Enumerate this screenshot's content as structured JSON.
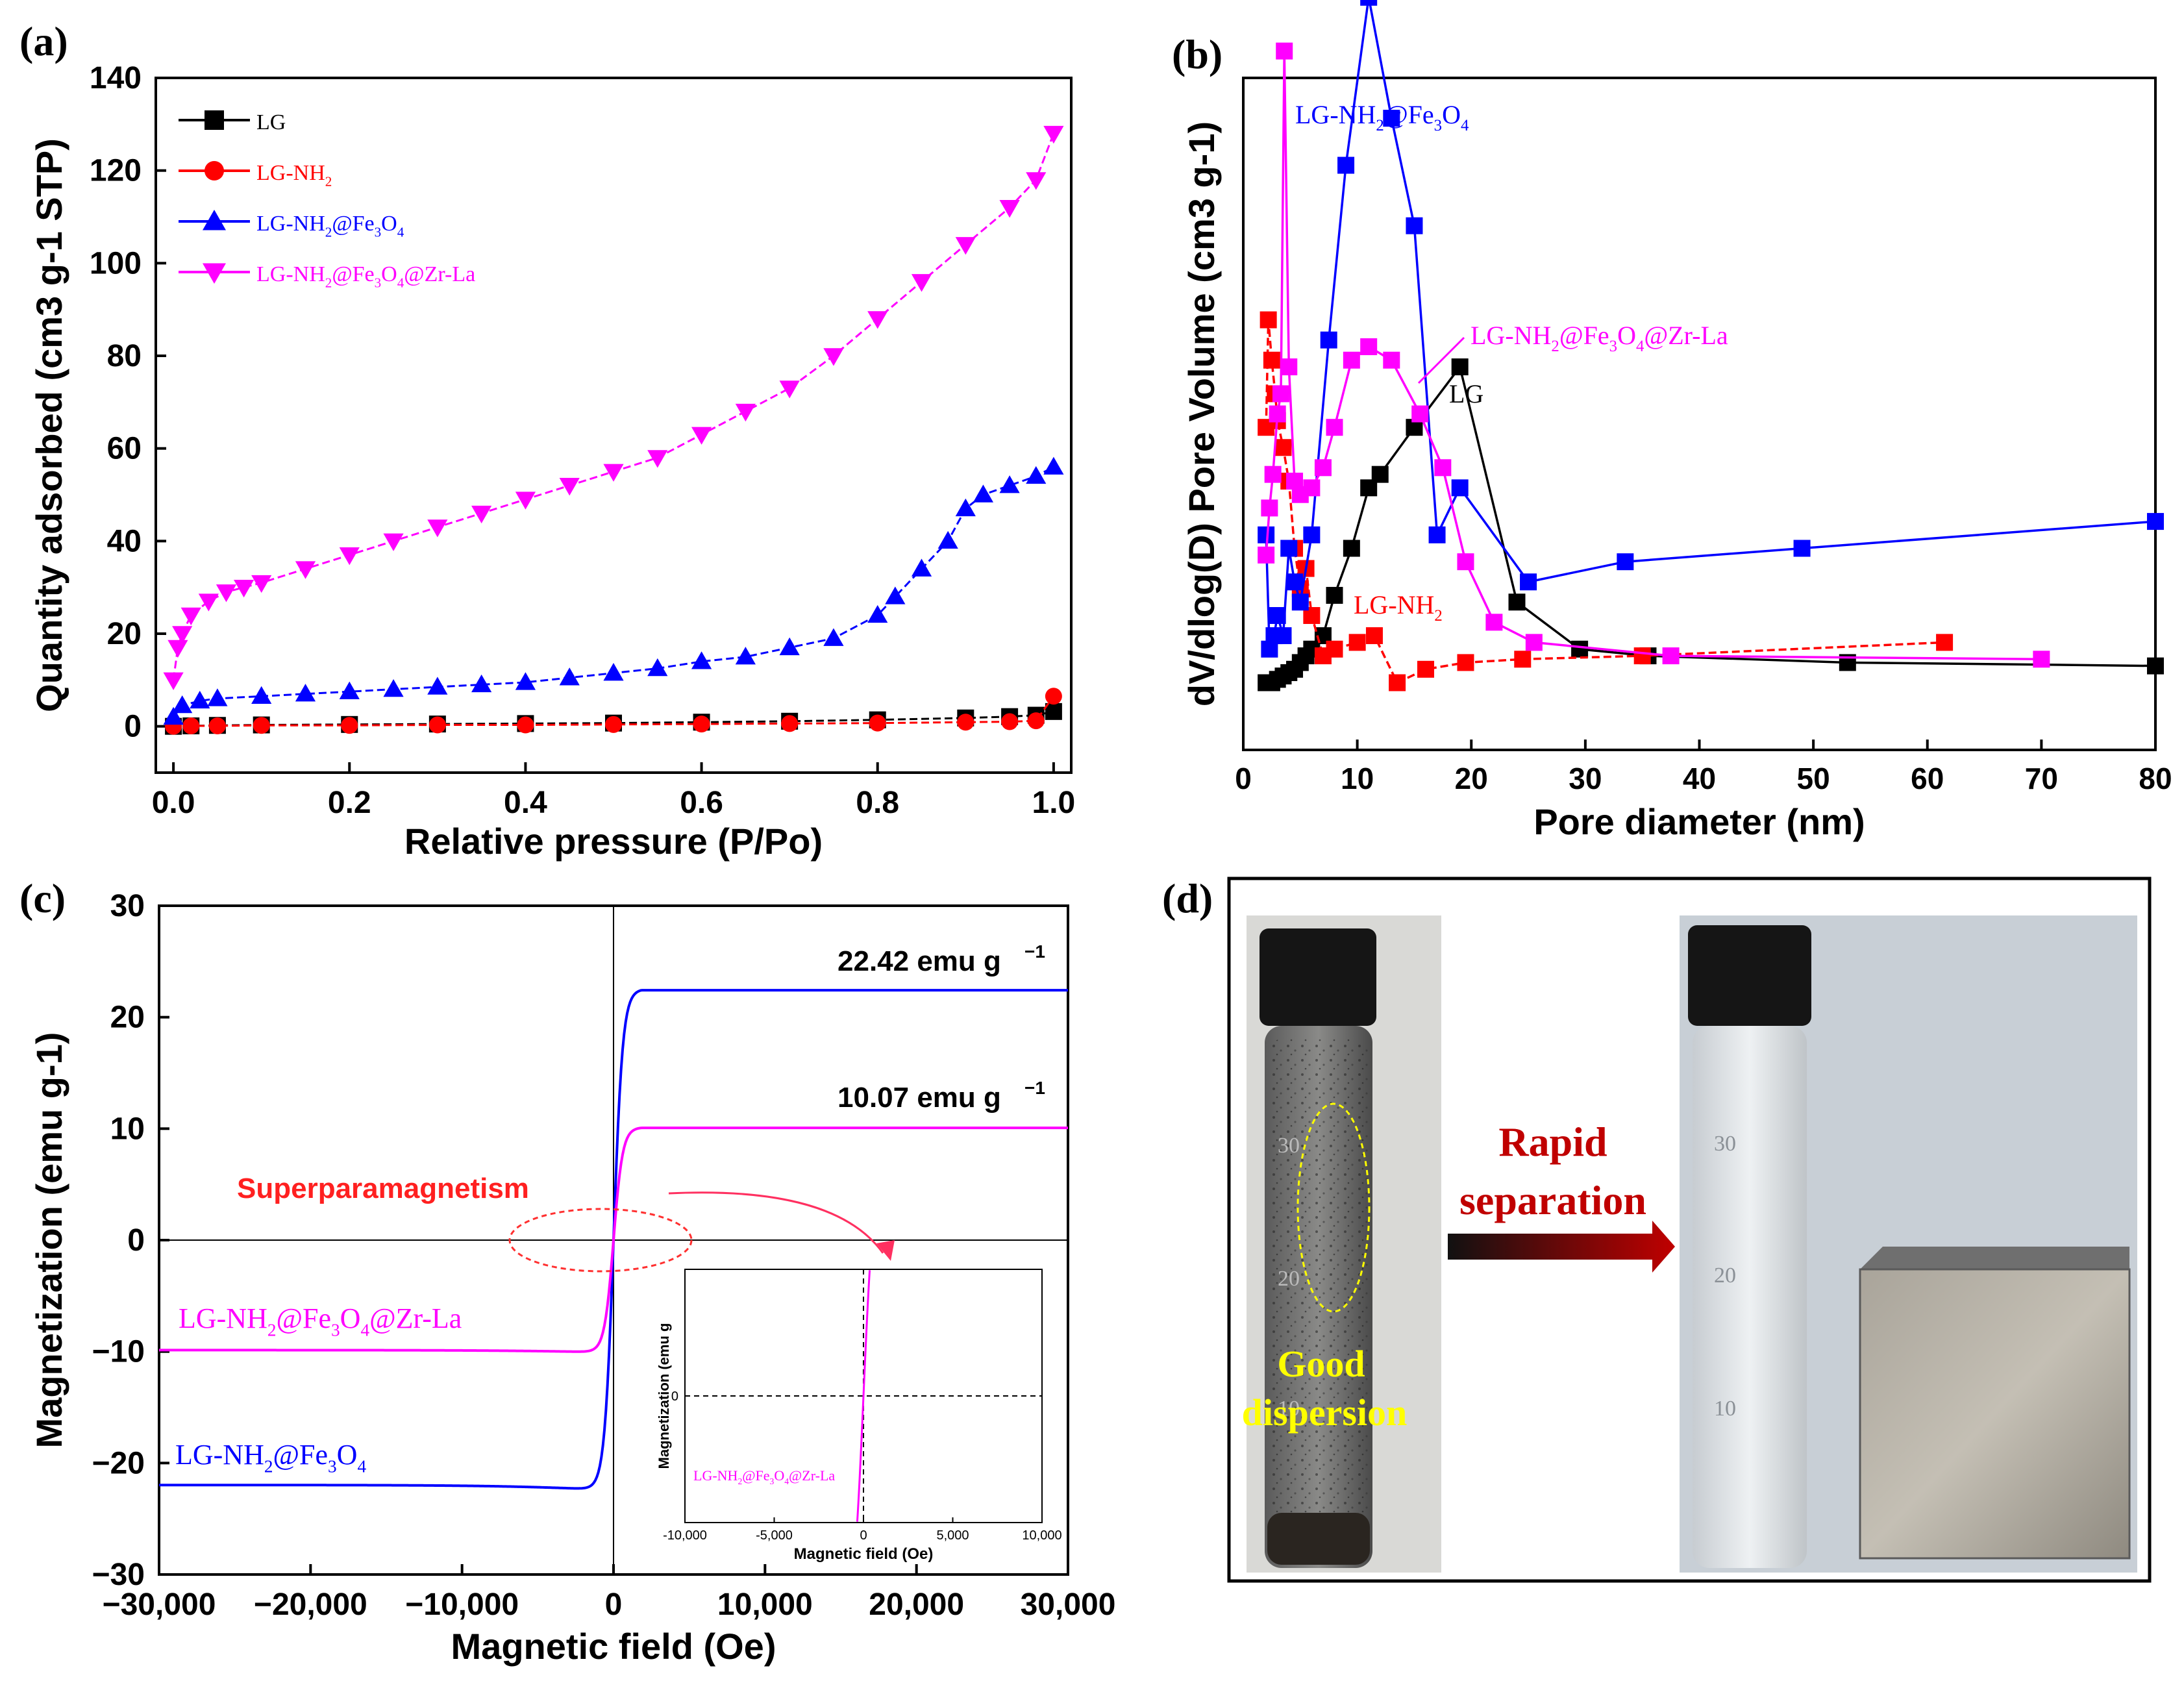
{
  "figure": {
    "panel_labels": [
      "(a)",
      "(b)",
      "(c)",
      "(d)"
    ]
  },
  "chart_data": [
    {
      "type": "line",
      "panel": "(a)",
      "xlabel": "Relative pressure (P/Po)",
      "ylabel": "Quantity adsorbed (cm3 g-1 STP)",
      "xlim": [
        -0.02,
        1.02
      ],
      "ylim": [
        -10,
        140
      ],
      "xticks": [
        "0.0",
        "0.2",
        "0.4",
        "0.6",
        "0.8",
        "1.0"
      ],
      "yticks": [
        "0",
        "20",
        "40",
        "60",
        "80",
        "100",
        "120",
        "140"
      ],
      "legend_position": "top-left",
      "series": [
        {
          "name": "LG",
          "label_main": "LG",
          "label_parts": [],
          "color": "#000000",
          "marker": "square",
          "x": [
            0.0,
            0.02,
            0.05,
            0.1,
            0.2,
            0.3,
            0.4,
            0.5,
            0.6,
            0.7,
            0.8,
            0.9,
            0.95,
            0.98,
            1.0
          ],
          "y": [
            0,
            0.1,
            0.2,
            0.3,
            0.4,
            0.5,
            0.6,
            0.7,
            0.9,
            1.1,
            1.4,
            1.8,
            2.1,
            2.4,
            3.2
          ]
        },
        {
          "name": "LG-NH2",
          "label_main": "LG-NH",
          "label_parts": [
            [
              "2",
              "sub"
            ]
          ],
          "color": "#ff0000",
          "marker": "circle",
          "x": [
            0.0,
            0.02,
            0.05,
            0.1,
            0.2,
            0.3,
            0.4,
            0.5,
            0.6,
            0.7,
            0.8,
            0.9,
            0.95,
            0.98,
            1.0
          ],
          "y": [
            0,
            0.1,
            0.1,
            0.2,
            0.2,
            0.3,
            0.3,
            0.4,
            0.5,
            0.6,
            0.7,
            0.9,
            1.0,
            1.2,
            6.5
          ]
        },
        {
          "name": "LG-NH2@Fe3O4",
          "label_main": "LG-NH",
          "label_parts": [
            [
              "2",
              "sub"
            ],
            [
              "@Fe",
              ""
            ],
            [
              "3",
              "sub"
            ],
            [
              "O",
              ""
            ],
            [
              "4",
              "sub"
            ]
          ],
          "color": "#0000ff",
          "marker": "triangle-up",
          "x": [
            0.0,
            0.01,
            0.03,
            0.05,
            0.1,
            0.15,
            0.2,
            0.25,
            0.3,
            0.35,
            0.4,
            0.45,
            0.5,
            0.55,
            0.6,
            0.65,
            0.7,
            0.75,
            0.8,
            0.82,
            0.85,
            0.88,
            0.9,
            0.92,
            0.95,
            0.98,
            1.0
          ],
          "y": [
            2,
            4.5,
            5.5,
            6,
            6.5,
            7,
            7.5,
            8,
            8.5,
            9,
            9.5,
            10.5,
            11.5,
            12.5,
            14,
            15,
            17,
            19,
            24,
            28,
            34,
            40,
            47,
            50,
            52,
            54,
            56
          ]
        },
        {
          "name": "LG-NH2@Fe3O4@Zr-La",
          "label_main": "LG-NH",
          "label_parts": [
            [
              "2",
              "sub"
            ],
            [
              "@Fe",
              ""
            ],
            [
              "3",
              "sub"
            ],
            [
              "O",
              ""
            ],
            [
              "4",
              "sub"
            ],
            [
              "@Zr-La",
              ""
            ]
          ],
          "color": "#ff00ff",
          "marker": "triangle-down",
          "x": [
            0.0,
            0.005,
            0.01,
            0.02,
            0.04,
            0.06,
            0.08,
            0.1,
            0.15,
            0.2,
            0.25,
            0.3,
            0.35,
            0.4,
            0.45,
            0.5,
            0.55,
            0.6,
            0.65,
            0.7,
            0.75,
            0.8,
            0.85,
            0.9,
            0.95,
            0.98,
            1.0
          ],
          "y": [
            10,
            17,
            20,
            24,
            27,
            29,
            30,
            31,
            34,
            37,
            40,
            43,
            46,
            49,
            52,
            55,
            58,
            63,
            68,
            73,
            80,
            88,
            96,
            104,
            112,
            118,
            128
          ]
        }
      ]
    },
    {
      "type": "line",
      "panel": "(b)",
      "xlabel": "Pore diameter (nm)",
      "ylabel": "dV/dlog(D) Pore Volume (cm3 g-1)",
      "xlim": [
        0,
        80
      ],
      "ylim": [
        0,
        100
      ],
      "xticks": [
        "0",
        "10",
        "20",
        "30",
        "40",
        "50",
        "60",
        "70",
        "80"
      ],
      "yticks_shown": false,
      "annotations": [
        {
          "text_main": "LG-NH",
          "text_parts": [
            [
              "2",
              "sub"
            ],
            [
              "@Fe",
              ""
            ],
            [
              "3",
              "sub"
            ],
            [
              "O",
              ""
            ],
            [
              "4",
              "sub"
            ]
          ],
          "color": "#0000ff"
        },
        {
          "text_main": "LG-NH",
          "text_parts": [
            [
              "2",
              "sub"
            ],
            [
              "@Fe",
              ""
            ],
            [
              "3",
              "sub"
            ],
            [
              "O",
              ""
            ],
            [
              "4",
              "sub"
            ],
            [
              "@Zr-La",
              ""
            ]
          ],
          "color": "#ff00ff"
        },
        {
          "text_main": "LG",
          "text_parts": [],
          "color": "#000000"
        },
        {
          "text_main": "LG-NH",
          "text_parts": [
            [
              "2",
              "sub"
            ]
          ],
          "color": "#ff0000"
        }
      ],
      "series": [
        {
          "name": "LG",
          "color": "#000000",
          "x": [
            2,
            2.5,
            3,
            3.5,
            4,
            4.5,
            5,
            5.5,
            6,
            7,
            8,
            9.5,
            11,
            12,
            15,
            19,
            24,
            29.5,
            35.5,
            53,
            80
          ],
          "y": [
            10,
            10,
            10.5,
            11,
            11.5,
            12,
            13,
            14,
            15,
            17,
            23,
            30,
            39,
            41,
            48,
            57,
            22,
            15,
            14,
            13,
            12.5
          ]
        },
        {
          "name": "LG-NH2",
          "color": "#ff0000",
          "x": [
            2,
            2.2,
            2.5,
            2.8,
            3,
            3.5,
            4,
            4.5,
            5,
            5.5,
            6,
            7,
            8,
            10,
            11.5,
            13.5,
            16,
            19.5,
            24.5,
            35,
            61.5
          ],
          "y": [
            48,
            64,
            58,
            53,
            49,
            45,
            40,
            30,
            24,
            27,
            20,
            14,
            15,
            16,
            17,
            10,
            12,
            13,
            13.5,
            14,
            16
          ]
        },
        {
          "name": "LG-NH2@Fe3O4",
          "color": "#0000ff",
          "x": [
            2,
            2.3,
            2.7,
            3,
            3.5,
            4,
            4.5,
            5,
            6,
            7.5,
            9,
            11,
            13,
            15,
            17,
            19,
            25,
            33.5,
            49,
            80
          ],
          "y": [
            32,
            15,
            17,
            20,
            17,
            30,
            25,
            22,
            32,
            61,
            87,
            112,
            94,
            78,
            32,
            39,
            25,
            28,
            30,
            34
          ]
        },
        {
          "name": "LG-NH2@Fe3O4@Zr-La",
          "color": "#ff00ff",
          "x": [
            2,
            2.3,
            2.6,
            3,
            3.3,
            3.6,
            4,
            4.5,
            5,
            6,
            7,
            8,
            9.5,
            11,
            13,
            15.5,
            17.5,
            19.5,
            22,
            25.5,
            37.5,
            70
          ],
          "y": [
            29,
            36,
            41,
            50,
            53,
            104,
            57,
            40,
            38,
            39,
            42,
            48,
            58,
            60,
            58,
            50,
            42,
            28,
            19,
            16,
            14,
            13.5
          ]
        }
      ]
    },
    {
      "type": "line",
      "panel": "(c)",
      "xlabel": "Magnetic field (Oe)",
      "ylabel": "Magnetization (emu g-1)",
      "xlim": [
        -30000,
        30000
      ],
      "ylim": [
        -30,
        30
      ],
      "xticks": [
        "−30,000",
        "−20,000",
        "−10,000",
        "0",
        "10,000",
        "20,000",
        "30,000"
      ],
      "yticks": [
        "−30",
        "−20",
        "−10",
        "0",
        "10",
        "20",
        "30"
      ],
      "series": [
        {
          "name": "LG-NH2@Fe3O4",
          "label_main": "LG-NH",
          "label_parts": [
            [
              "2",
              "sub"
            ],
            [
              "@Fe",
              ""
            ],
            [
              "3",
              "sub"
            ],
            [
              "O",
              ""
            ],
            [
              "4",
              "sub"
            ]
          ],
          "color": "#0000ff",
          "Ms": 22.42,
          "Hk": 600
        },
        {
          "name": "LG-NH2@Fe3O4@Zr-La",
          "label_main": "LG-NH",
          "label_parts": [
            [
              "2",
              "sub"
            ],
            [
              "@Fe",
              ""
            ],
            [
              "3",
              "sub"
            ],
            [
              "O",
              ""
            ],
            [
              "4",
              "sub"
            ],
            [
              "@Zr-La",
              ""
            ]
          ],
          "color": "#ff00ff",
          "Ms": 10.07,
          "Hk": 600
        }
      ],
      "annotations": {
        "ms1": "22.42 emu g",
        "ms2": "10.07 emu g",
        "superpara": "Superparamagnetism",
        "exp": "−1"
      },
      "inset": {
        "xlabel": "Magnetic field (Oe)",
        "ylabel": "Magnetization (emu g",
        "xlim": [
          -10000,
          10000
        ],
        "xticks": [
          "-10,000",
          "-5,000",
          "0",
          "5,000",
          "10,000"
        ],
        "ytick": "0",
        "label_main": "LG-NH",
        "label_parts": [
          [
            "2",
            "sub"
          ],
          [
            "@Fe",
            ""
          ],
          [
            "3",
            "sub"
          ],
          [
            "O",
            ""
          ],
          [
            "4",
            "sub"
          ],
          [
            "@Zr-La",
            ""
          ]
        ]
      }
    }
  ],
  "photo_panel": {
    "text_left_1": "Good",
    "text_left_2": "dispersion",
    "text_arrow_1": "Rapid",
    "text_arrow_2": "separation",
    "vial_marks_left": [
      "30",
      "20",
      "10"
    ],
    "vial_marks_right": [
      "30",
      "20",
      "10"
    ]
  }
}
